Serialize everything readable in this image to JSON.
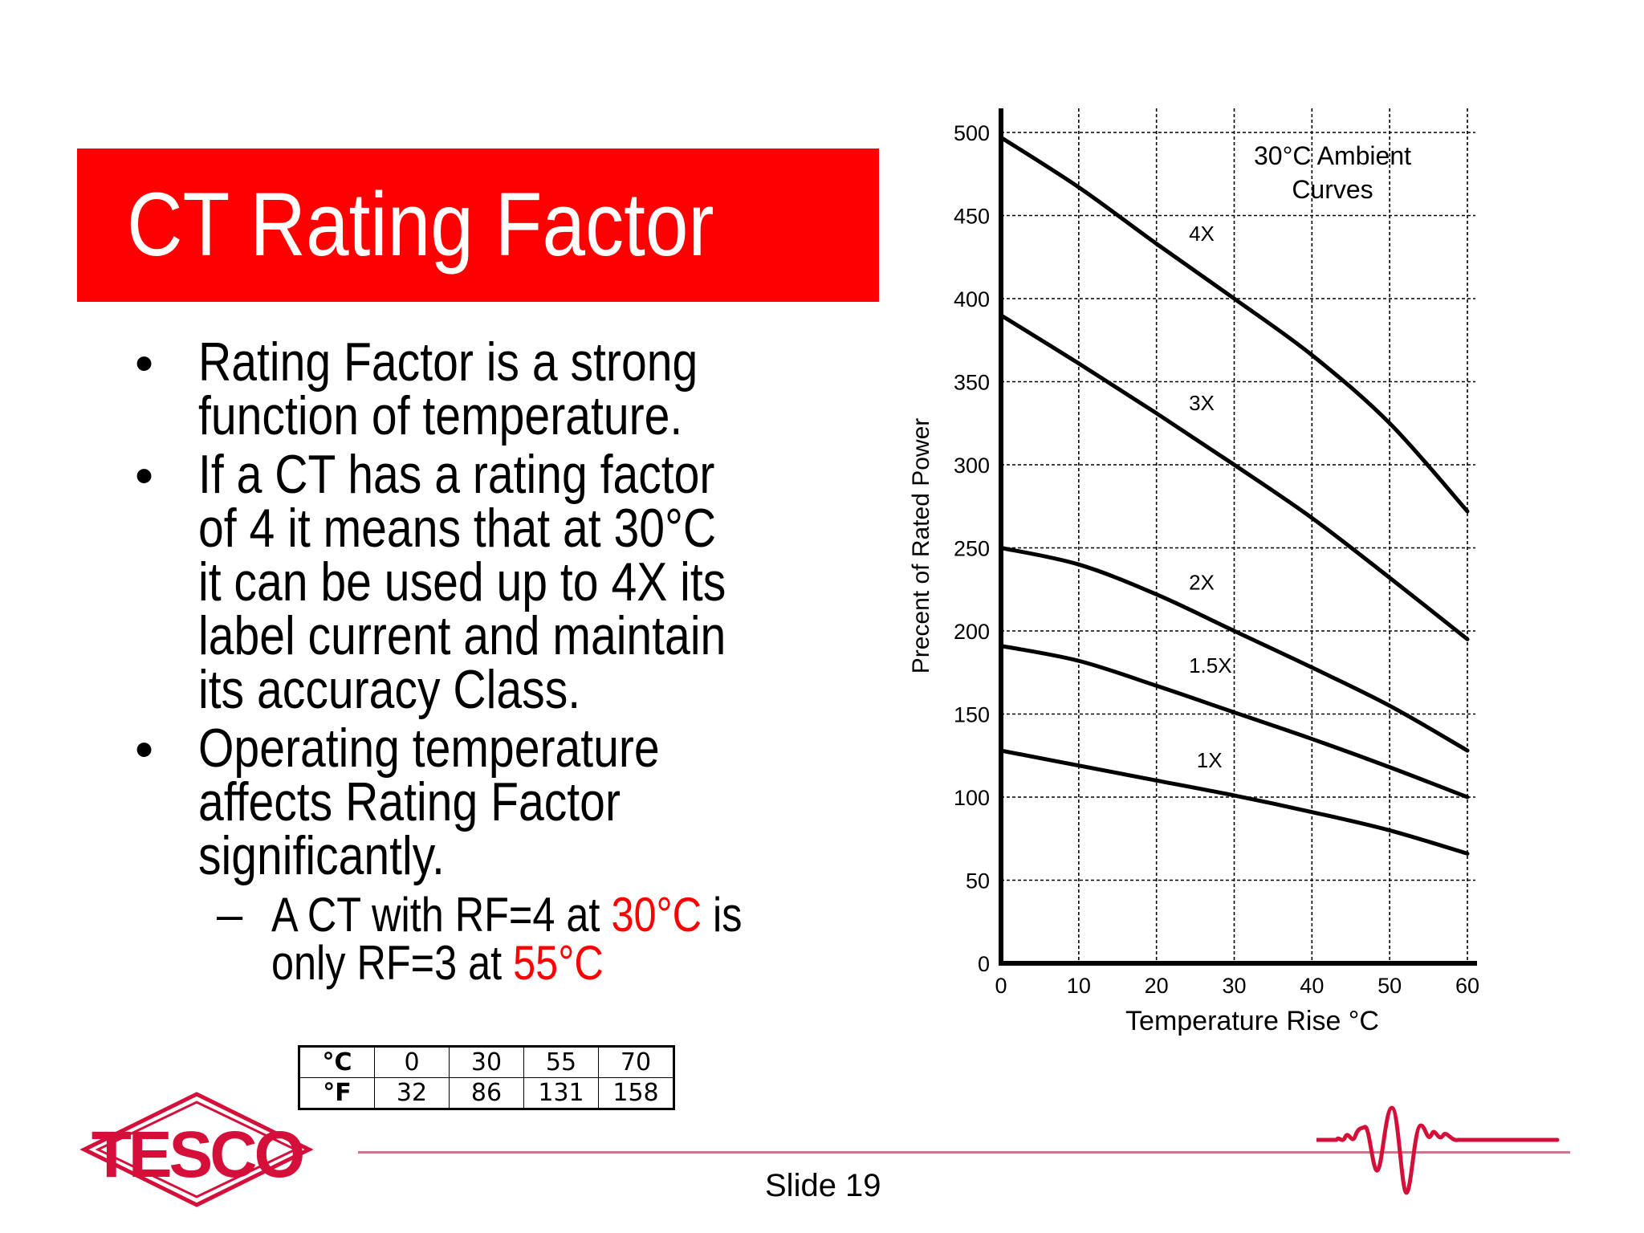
{
  "slide": {
    "title": "CT Rating Factor",
    "number_label": "Slide 19",
    "accent_color": "#ff0000",
    "logo_color": "#d4103a",
    "footer_line_color": "#c77b8a"
  },
  "bullets": [
    {
      "text": "Rating Factor is a strong\nfunction of temperature."
    },
    {
      "text": "If a CT has a rating factor\nof 4 it means that at 30°C\nit can be used up to 4X its\nlabel current and maintain\nits accuracy Class."
    },
    {
      "text": "Operating temperature\naffects Rating Factor\nsignificantly."
    }
  ],
  "sub_bullet": {
    "dash": "–",
    "part1": "A CT with RF=4 at ",
    "highlight1": "30°C",
    "part2": " is only RF=3 at ",
    "highlight2": "55°C"
  },
  "bullet_glyph": "•",
  "conversion_table": {
    "rows": [
      {
        "unit": "°C",
        "values": [
          "0",
          "30",
          "55",
          "70"
        ]
      },
      {
        "unit": "°F",
        "values": [
          "32",
          "86",
          "131",
          "158"
        ]
      }
    ]
  },
  "logos": {
    "left": "TESCO",
    "right": "waveform-logo"
  },
  "chart_data": {
    "type": "line",
    "title": "30°C Ambient Curves",
    "xlabel": "Temperature Rise °C",
    "ylabel": "Precent of Rated Power",
    "x": [
      0,
      10,
      20,
      30,
      40,
      50,
      60
    ],
    "xlim": [
      0,
      60
    ],
    "ylim": [
      0,
      500
    ],
    "xticks": [
      "0",
      "10",
      "20",
      "30",
      "40",
      "50",
      "60"
    ],
    "yticks": [
      "0",
      "50",
      "100",
      "150",
      "200",
      "250",
      "300",
      "350",
      "400",
      "450",
      "500"
    ],
    "grid": true,
    "legend_position": "inline labels on curves",
    "series": [
      {
        "name": "4X",
        "values": [
          497,
          467,
          433,
          400,
          366,
          325,
          272
        ]
      },
      {
        "name": "3X",
        "values": [
          390,
          361,
          331,
          300,
          268,
          232,
          195
        ]
      },
      {
        "name": "2X",
        "values": [
          250,
          240,
          222,
          200,
          178,
          155,
          128
        ]
      },
      {
        "name": "1.5X",
        "values": [
          191,
          182,
          167,
          151,
          135,
          118,
          100
        ]
      },
      {
        "name": "1X",
        "values": [
          128,
          119,
          110,
          101,
          91,
          80,
          66
        ]
      }
    ]
  }
}
